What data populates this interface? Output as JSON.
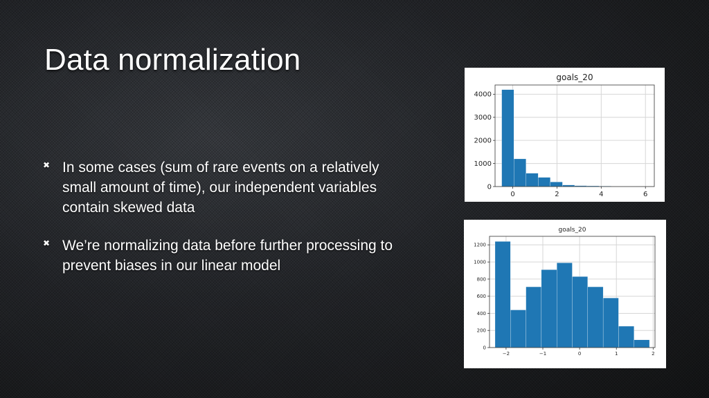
{
  "slide": {
    "title": "Data normalization",
    "bullets": [
      "In some cases (sum of rare events on a relatively small amount of time), our independent variables contain skewed data",
      "We’re normalizing data before further processing to prevent biases in our linear model"
    ]
  },
  "colors": {
    "bar": "#1f77b4",
    "grid": "#d6d6d6"
  },
  "chart_data": [
    {
      "type": "bar",
      "title": "goals_20",
      "xlabel": "",
      "ylabel": "",
      "bins": [
        [
          -0.5,
          0.05
        ],
        [
          0.05,
          0.6
        ],
        [
          0.6,
          1.15
        ],
        [
          1.15,
          1.7
        ],
        [
          1.7,
          2.25
        ],
        [
          2.25,
          2.8
        ],
        [
          2.8,
          3.35
        ],
        [
          3.35,
          3.9
        ],
        [
          3.9,
          4.45
        ],
        [
          4.45,
          5.0
        ],
        [
          5.0,
          5.55
        ],
        [
          5.55,
          6.1
        ]
      ],
      "values": [
        4200,
        1200,
        580,
        400,
        200,
        70,
        40,
        30,
        20,
        10,
        5,
        3
      ],
      "xlim": [
        -0.8,
        6.4
      ],
      "ylim": [
        0,
        4400
      ],
      "xticks": [
        0,
        2,
        4,
        6
      ],
      "xtick_labels": [
        "0",
        "2",
        "4",
        "6"
      ],
      "yticks": [
        0,
        1000,
        2000,
        3000,
        4000
      ],
      "ytick_labels": [
        "0",
        "1000",
        "2000",
        "3000",
        "4000"
      ],
      "grid": true
    },
    {
      "type": "bar",
      "title": "goals_20",
      "xlabel": "",
      "ylabel": "",
      "bins": [
        [
          -2.3,
          -1.88
        ],
        [
          -1.88,
          -1.46
        ],
        [
          -1.46,
          -1.04
        ],
        [
          -1.04,
          -0.62
        ],
        [
          -0.62,
          -0.2
        ],
        [
          -0.2,
          0.22
        ],
        [
          0.22,
          0.64
        ],
        [
          0.64,
          1.06
        ],
        [
          1.06,
          1.48
        ],
        [
          1.48,
          1.9
        ]
      ],
      "values": [
        1240,
        440,
        710,
        910,
        990,
        830,
        710,
        580,
        250,
        90
      ],
      "xlim": [
        -2.45,
        2.05
      ],
      "ylim": [
        0,
        1300
      ],
      "xticks": [
        -2,
        -1,
        0,
        1,
        2
      ],
      "xtick_labels": [
        "−2",
        "−1",
        "0",
        "1",
        "2"
      ],
      "yticks": [
        0,
        200,
        400,
        600,
        800,
        1000,
        1200
      ],
      "ytick_labels": [
        "0",
        "200",
        "400",
        "600",
        "800",
        "1000",
        "1200"
      ],
      "grid": true
    }
  ]
}
